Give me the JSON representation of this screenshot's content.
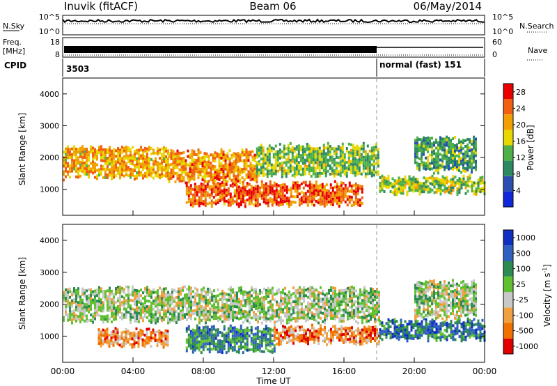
{
  "header": {
    "station": "Inuvik (fitACF)",
    "beam": "Beam 06",
    "date": "06/May/2014"
  },
  "strips": {
    "nsky": {
      "label": "N.Sky",
      "tick_top": "10^5",
      "tick_bottom": "10^0"
    },
    "nsearch": {
      "label": "N.Search",
      "tick_top": "10^5",
      "tick_bottom": "10^0"
    },
    "freq": {
      "label_line1": "Freq.",
      "label_line2": "[MHz]",
      "tick_top": "18",
      "tick_bottom": "8"
    },
    "nave": {
      "label": "Nave",
      "tick_top": "60",
      "tick_bottom": "0"
    },
    "cpid": {
      "label": "CPID",
      "mode1": "3503",
      "mode2": "normal (fast) 151"
    }
  },
  "time_axis": {
    "xlabel": "Time UT",
    "ticks": [
      "00:00",
      "04:00",
      "08:00",
      "12:00",
      "16:00",
      "20:00",
      "00:00"
    ]
  },
  "chart_data": [
    {
      "type": "heatmap",
      "title": "",
      "xlabel": "Time UT",
      "ylabel": "Slant Range [km]",
      "xlim": [
        0,
        24
      ],
      "ylim": [
        180,
        4500
      ],
      "y_ticks": [
        "1000",
        "2000",
        "3000",
        "4000"
      ],
      "colorbar": {
        "label": "Power [dB]",
        "ticks": [
          "4",
          "8",
          "12",
          "16",
          "20",
          "24",
          "28"
        ],
        "range": [
          0,
          30
        ]
      },
      "colors": [
        "#1028d8",
        "#2a4fb0",
        "#2d8a60",
        "#4fb048",
        "#e8d800",
        "#f0a000",
        "#f06010",
        "#e80000"
      ],
      "bands": [
        {
          "start_h": 0.0,
          "end_h": 6.0,
          "y_low_km": 1400,
          "y_high_km": 2300,
          "level": 0.7
        },
        {
          "start_h": 6.0,
          "end_h": 11.0,
          "y_low_km": 1300,
          "y_high_km": 2200,
          "level": 0.75
        },
        {
          "start_h": 11.0,
          "end_h": 18.0,
          "y_low_km": 1500,
          "y_high_km": 2400,
          "level": 0.45
        },
        {
          "start_h": 7.0,
          "end_h": 17.0,
          "y_low_km": 500,
          "y_high_km": 1200,
          "level": 0.85
        },
        {
          "start_h": 18.0,
          "end_h": 24.0,
          "y_low_km": 900,
          "y_high_km": 1400,
          "level": 0.5
        },
        {
          "start_h": 20.0,
          "end_h": 23.5,
          "y_low_km": 1600,
          "y_high_km": 2600,
          "level": 0.35
        }
      ]
    },
    {
      "type": "heatmap",
      "title": "",
      "xlabel": "Time UT",
      "ylabel": "Slant Range [km]",
      "xlim": [
        0,
        24
      ],
      "ylim": [
        180,
        4500
      ],
      "y_ticks": [
        "1000",
        "2000",
        "3000",
        "4000"
      ],
      "colorbar": {
        "label": "Velocity [m s-1]",
        "ticks": [
          "1000",
          "500",
          "100",
          "25",
          "-25",
          "-100",
          "-500",
          "-1000"
        ]
      },
      "colors": [
        "#1030c0",
        "#3060c0",
        "#2d8a50",
        "#60c030",
        "#c8c8c8",
        "#f0a040",
        "#f07000",
        "#e00000"
      ],
      "bands": [
        {
          "start_h": 0.0,
          "end_h": 18.0,
          "y_low_km": 1500,
          "y_high_km": 2500,
          "level": 0.5
        },
        {
          "start_h": 2.0,
          "end_h": 6.0,
          "y_low_km": 700,
          "y_high_km": 1200,
          "level": 0.8
        },
        {
          "start_h": 7.0,
          "end_h": 12.0,
          "y_low_km": 600,
          "y_high_km": 1300,
          "level": 0.25
        },
        {
          "start_h": 12.0,
          "end_h": 18.0,
          "y_low_km": 800,
          "y_high_km": 1300,
          "level": 0.8
        },
        {
          "start_h": 18.0,
          "end_h": 24.0,
          "y_low_km": 900,
          "y_high_km": 1500,
          "level": 0.2
        },
        {
          "start_h": 20.0,
          "end_h": 23.5,
          "y_low_km": 1600,
          "y_high_km": 2700,
          "level": 0.5
        }
      ]
    }
  ]
}
